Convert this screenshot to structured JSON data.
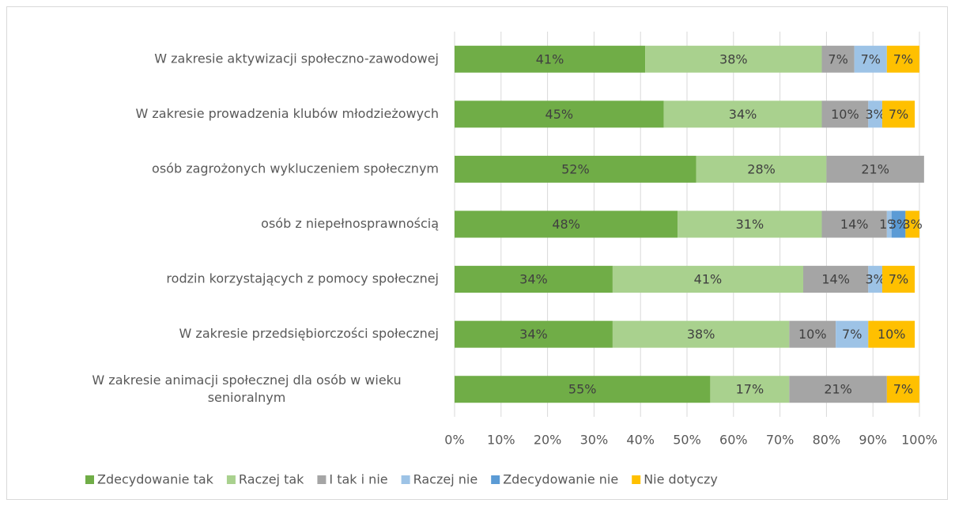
{
  "chart_data": {
    "type": "stacked_barh",
    "categories": [
      "W zakresie aktywizacji społeczno-zawodowej",
      "W zakresie prowadzenia klubów młodzieżowych",
      "osób zagrożonych wykluczeniem społecznym",
      "osób z niepełnosprawnością",
      "rodzin korzystających z pomocy społecznej",
      "W zakresie przedsiębiorczości społecznej",
      "W zakresie animacji społecznej dla osób w wieku senioralnym"
    ],
    "series": [
      {
        "name": "Zdecydowanie tak",
        "color": "#70ad47",
        "values": [
          41,
          45,
          52,
          48,
          34,
          34,
          55
        ],
        "value_labels": [
          "41%",
          "45%",
          "52%",
          "48%",
          "34%",
          "34%",
          "55%"
        ]
      },
      {
        "name": "Raczej tak",
        "color": "#a9d18e",
        "values": [
          38,
          34,
          28,
          31,
          41,
          38,
          17
        ],
        "value_labels": [
          "38%",
          "34%",
          "28%",
          "31%",
          "41%",
          "38%",
          "17%"
        ]
      },
      {
        "name": "I tak i nie",
        "color": "#a5a5a5",
        "values": [
          7,
          10,
          21,
          14,
          14,
          10,
          21
        ],
        "value_labels": [
          "7%",
          "10%",
          "21%",
          "14%",
          "14%",
          "10%",
          "21%"
        ]
      },
      {
        "name": "Raczej nie",
        "color": "#9dc3e6",
        "values": [
          7,
          3,
          0,
          1,
          3,
          7,
          0
        ],
        "value_labels": [
          "7%",
          "3%",
          null,
          "1%",
          "3%",
          "7%",
          null
        ]
      },
      {
        "name": "Zdecydowanie nie",
        "color": "#5b9bd5",
        "values": [
          0,
          0,
          0,
          3,
          0,
          0,
          0
        ],
        "value_labels": [
          null,
          null,
          null,
          "3%",
          null,
          null,
          null
        ]
      },
      {
        "name": "Nie dotyczy",
        "color": "#ffc000",
        "values": [
          7,
          7,
          0,
          3,
          7,
          10,
          7
        ],
        "value_labels": [
          "7%",
          "7%",
          null,
          "3%",
          "7%",
          "10%",
          "7%"
        ]
      }
    ],
    "xlim": [
      0,
      100
    ],
    "xticks": [
      {
        "value": 0,
        "label": "0%"
      },
      {
        "value": 10,
        "label": "10%"
      },
      {
        "value": 20,
        "label": "20%"
      },
      {
        "value": 30,
        "label": "30%"
      },
      {
        "value": 40,
        "label": "40%"
      },
      {
        "value": 50,
        "label": "50%"
      },
      {
        "value": 60,
        "label": "60%"
      },
      {
        "value": 70,
        "label": "70%"
      },
      {
        "value": 80,
        "label": "80%"
      },
      {
        "value": 90,
        "label": "90%"
      },
      {
        "value": 100,
        "label": "100%"
      }
    ],
    "grid": true,
    "legend": "bottom"
  }
}
